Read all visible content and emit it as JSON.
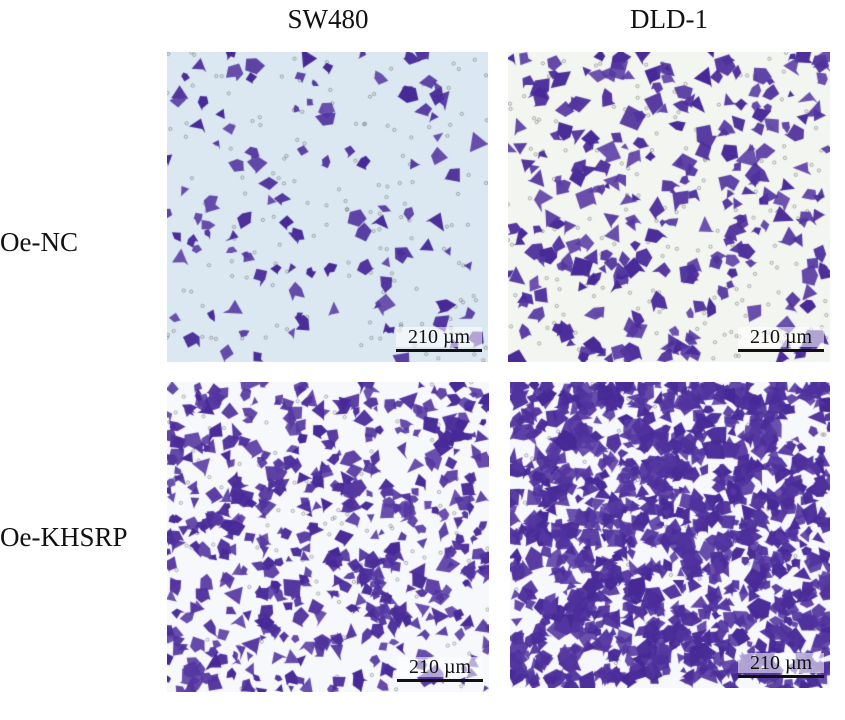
{
  "columns": [
    "SW480",
    "DLD-1"
  ],
  "rows": [
    "Oe-NC",
    "Oe-KHSRP"
  ],
  "scale_bar_label": "210 µm",
  "colors": {
    "stain": "#5b3aa6",
    "background_top_left": "#dbe8f1",
    "background_top_right": "#f3f5f1",
    "background_bottom": "#f7f8fc"
  }
}
